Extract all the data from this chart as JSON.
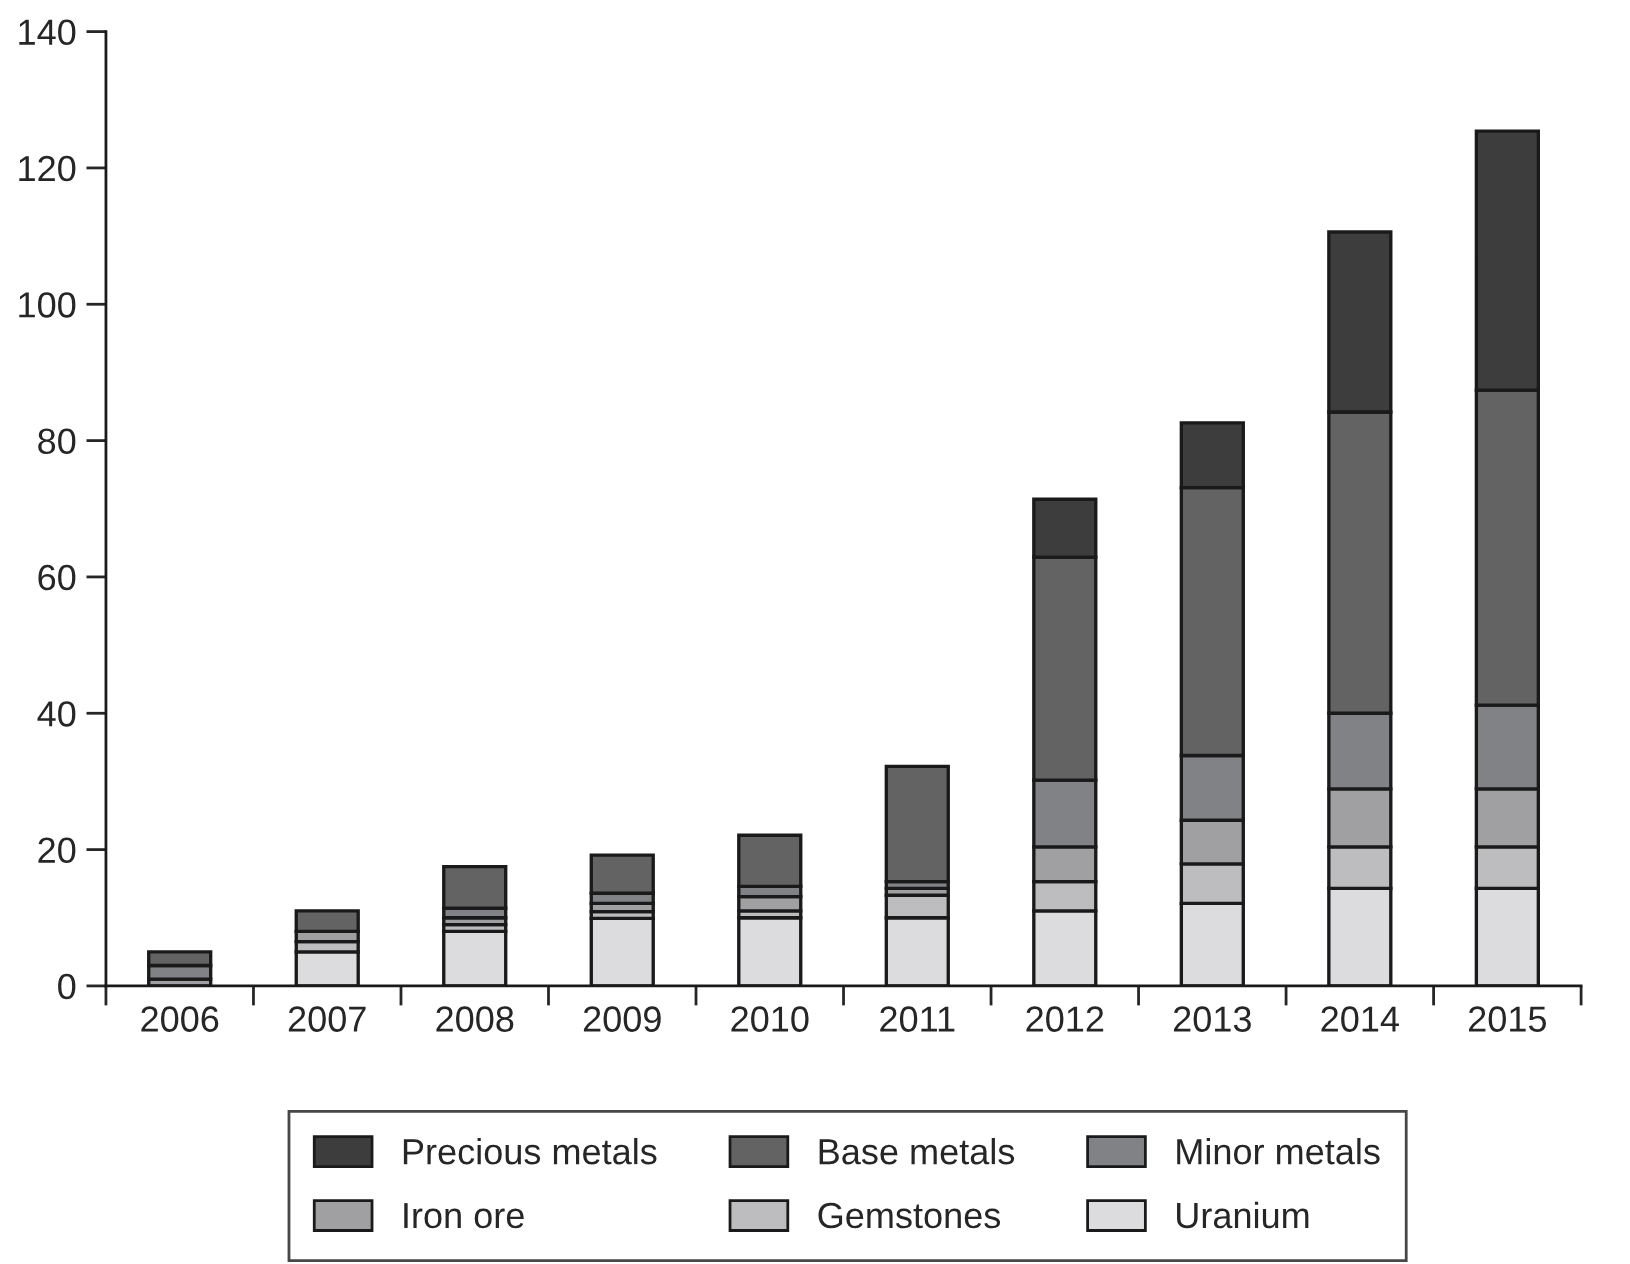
{
  "chart_data": {
    "type": "bar",
    "stacked": true,
    "categories": [
      "2006",
      "2007",
      "2008",
      "2009",
      "2010",
      "2011",
      "2012",
      "2013",
      "2014",
      "2015"
    ],
    "series": [
      {
        "name": "Uranium",
        "color": "#dcdcde",
        "values": [
          null,
          5,
          8,
          9.9,
          10,
          10,
          11,
          12.1,
          14.3,
          14.3
        ]
      },
      {
        "name": "Gemstones",
        "color": "#bdbdbf",
        "values": [
          null,
          1.5,
          1,
          1,
          1,
          3.3,
          4.3,
          5.8,
          6.1,
          6.1
        ]
      },
      {
        "name": "Iron ore",
        "color": "#a0a0a2",
        "values": [
          1,
          1.5,
          1,
          1.2,
          2.1,
          1,
          5.1,
          6.4,
          8.5,
          8.5
        ]
      },
      {
        "name": "Minor metals",
        "color": "#808285",
        "values": [
          2,
          null,
          1.4,
          1.5,
          1.5,
          1,
          9.8,
          9.5,
          11.1,
          12.3
        ]
      },
      {
        "name": "Base metals",
        "color": "#636363",
        "values": [
          2,
          3,
          6.1,
          5.6,
          7.5,
          16.9,
          32.7,
          39.3,
          44.2,
          46.2
        ]
      },
      {
        "name": "Precious metals",
        "color": "#3d3d3d",
        "values": [
          null,
          null,
          null,
          null,
          null,
          null,
          8.5,
          9.5,
          26.4,
          38
        ]
      }
    ],
    "ylim": [
      0,
      140
    ],
    "yticks": [
      0,
      20,
      40,
      60,
      80,
      100,
      120,
      140
    ],
    "grid": false,
    "legend": "bottom"
  }
}
